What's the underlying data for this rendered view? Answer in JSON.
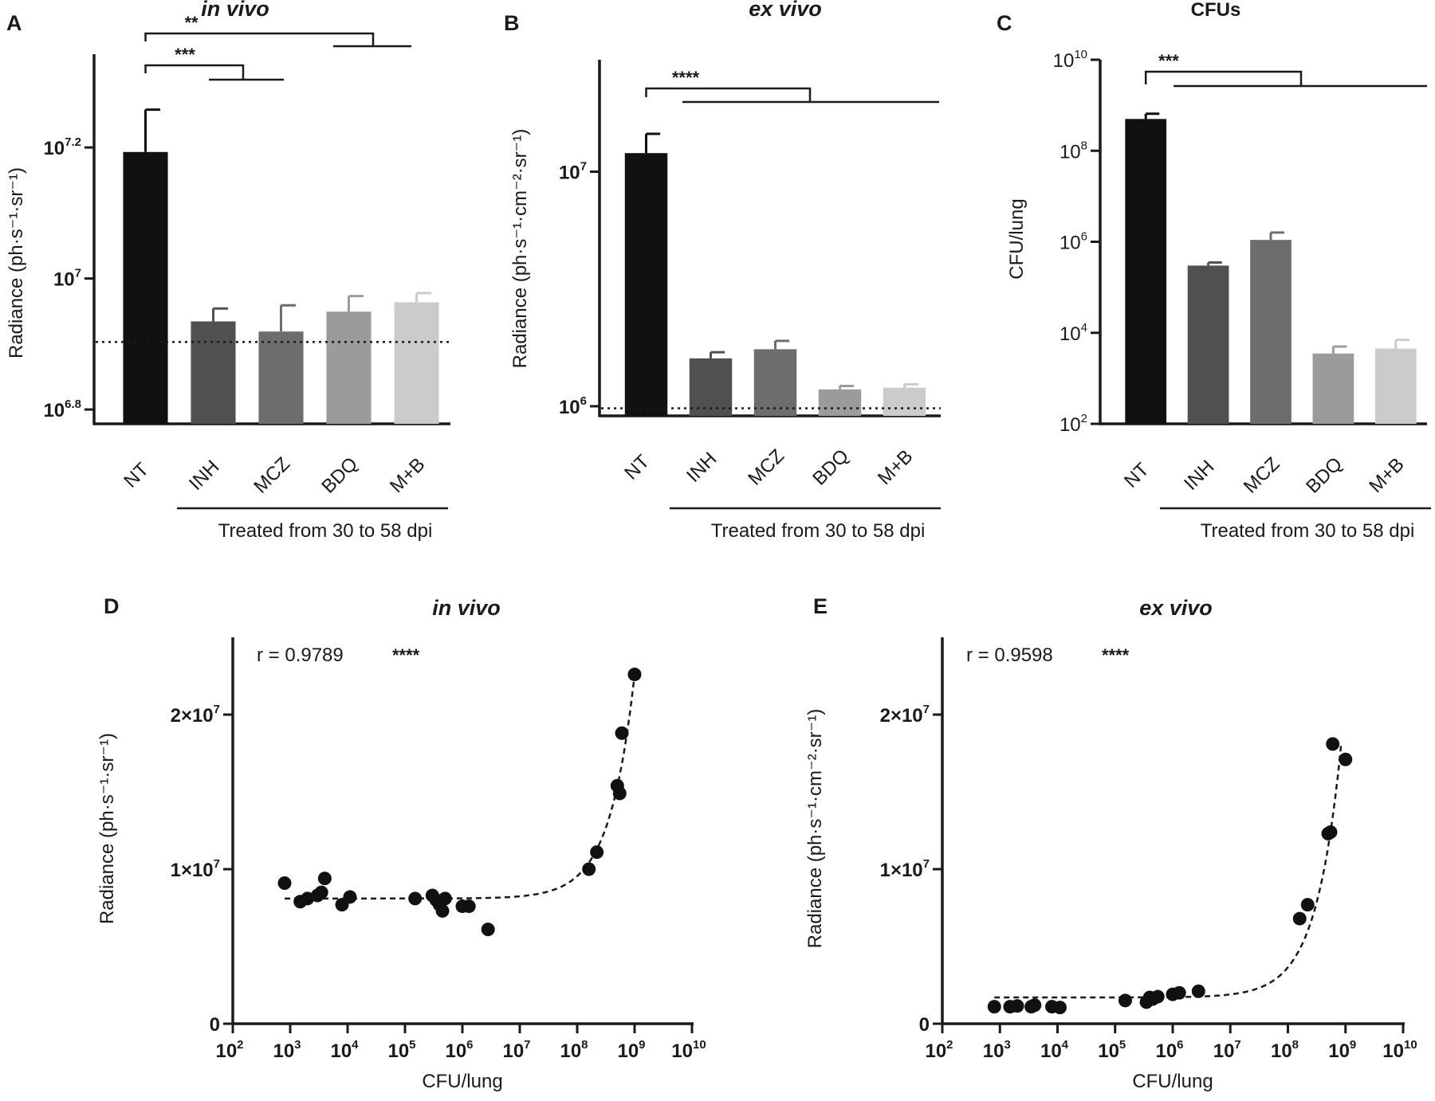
{
  "figure": {
    "panels": [
      {
        "letter": "A",
        "title": "in vivo"
      },
      {
        "letter": "B",
        "title": "ex vivo"
      },
      {
        "letter": "C",
        "title": "CFUs"
      },
      {
        "letter": "D",
        "title": "in vivo"
      },
      {
        "letter": "E",
        "title": "ex vivo"
      }
    ],
    "treated_label": "Treated from 30 to 58 dpi"
  },
  "chart_data": [
    {
      "panel": "A",
      "type": "bar",
      "title": "in vivo",
      "ylabel": "Radiance (ph·s⁻¹·sr⁻¹)",
      "yscale": "log",
      "ylim": [
        6000000,
        22000000
      ],
      "yticks": [
        "10^6.8",
        "10^7",
        "10^7.2"
      ],
      "categories": [
        "NT",
        "INH",
        "MCZ",
        "BDQ",
        "M+B"
      ],
      "values": [
        15600000,
        8600000,
        8300000,
        8900000,
        9200000
      ],
      "errors": [
        2500000,
        400000,
        800000,
        500000,
        300000
      ],
      "colors": [
        "#111111",
        "#505050",
        "#6d6d6d",
        "#9b9b9b",
        "#cbcbcb"
      ],
      "limit_of_detection": 8000000,
      "significance": [
        {
          "label": "***",
          "from": "NT",
          "to": [
            "INH",
            "MCZ"
          ]
        },
        {
          "label": "**",
          "from": "NT",
          "to": [
            "BDQ",
            "M+B"
          ]
        }
      ]
    },
    {
      "panel": "B",
      "type": "bar",
      "title": "ex vivo",
      "ylabel": "Radiance (ph·s⁻¹·cm⁻²·sr⁻¹)",
      "yscale": "log",
      "ylim": [
        910000,
        30000000
      ],
      "yticks": [
        "10^6",
        "10^7"
      ],
      "categories": [
        "NT",
        "INH",
        "MCZ",
        "BDQ",
        "M+B"
      ],
      "values": [
        12000000,
        1600000,
        1750000,
        1180000,
        1200000
      ],
      "errors": [
        2500000,
        100000,
        150000,
        40000,
        40000
      ],
      "colors": [
        "#111111",
        "#505050",
        "#6d6d6d",
        "#9b9b9b",
        "#cbcbcb"
      ],
      "limit_of_detection": 980000,
      "significance": [
        {
          "label": "****",
          "from": "NT",
          "to": [
            "INH",
            "MCZ",
            "BDQ",
            "M+B"
          ]
        }
      ]
    },
    {
      "panel": "C",
      "type": "bar",
      "title": "CFUs",
      "ylabel": "CFU/lung",
      "yscale": "log",
      "ylim": [
        100,
        10000000000
      ],
      "yticks": [
        "10^2",
        "10^4",
        "10^6",
        "10^8",
        "10^10"
      ],
      "categories": [
        "NT",
        "INH",
        "MCZ",
        "BDQ",
        "M+B"
      ],
      "values": [
        500000000,
        300000,
        1100000,
        3500,
        4500
      ],
      "errors": [
        150000000,
        50000,
        500000,
        1500,
        2500
      ],
      "colors": [
        "#111111",
        "#505050",
        "#6d6d6d",
        "#9b9b9b",
        "#cbcbcb"
      ],
      "significance": [
        {
          "label": "***",
          "from": "NT",
          "to": [
            "INH",
            "MCZ",
            "BDQ",
            "M+B"
          ]
        }
      ]
    },
    {
      "panel": "D",
      "type": "scatter",
      "title": "in vivo",
      "xlabel": "CFU/lung",
      "ylabel": "Radiance (ph·s⁻¹·sr⁻¹)",
      "xscale": "log",
      "xlim": [
        100,
        10000000000
      ],
      "ylim": [
        0,
        25000000
      ],
      "yticks": [
        "0",
        "1×10^7",
        "2×10^7"
      ],
      "annotation": "r =  0.9789",
      "significance": "****",
      "points": [
        [
          800,
          9100000
        ],
        [
          1500,
          7900000
        ],
        [
          2000,
          8100000
        ],
        [
          3000,
          8300000
        ],
        [
          3500,
          8500000
        ],
        [
          4000,
          9400000
        ],
        [
          8000,
          7700000
        ],
        [
          11000,
          8200000
        ],
        [
          150000,
          8100000
        ],
        [
          300000,
          8300000
        ],
        [
          350000,
          8000000
        ],
        [
          400000,
          7700000
        ],
        [
          450000,
          7300000
        ],
        [
          500000,
          8100000
        ],
        [
          1000000,
          7600000
        ],
        [
          1300000,
          7600000
        ],
        [
          2800000,
          6100000
        ],
        [
          160000000,
          10000000
        ],
        [
          220000000,
          11100000
        ],
        [
          500000000,
          15400000
        ],
        [
          550000000,
          14900000
        ],
        [
          600000000,
          18800000
        ],
        [
          1000000000,
          22600000
        ]
      ],
      "fit": {
        "type": "dashed",
        "baseline": 8100000,
        "slope": 0.0145
      }
    },
    {
      "panel": "E",
      "type": "scatter",
      "title": "ex vivo",
      "xlabel": "CFU/lung",
      "ylabel": "Radiance (ph·s⁻¹·cm⁻²·sr⁻¹)",
      "xscale": "log",
      "xlim": [
        100,
        10000000000
      ],
      "ylim": [
        0,
        25000000
      ],
      "yticks": [
        "0",
        "1×10^7",
        "2×10^7"
      ],
      "annotation": "r =  0.9598",
      "significance": "****",
      "points": [
        [
          800,
          1100000
        ],
        [
          1500,
          1100000
        ],
        [
          2000,
          1150000
        ],
        [
          3500,
          1100000
        ],
        [
          4000,
          1200000
        ],
        [
          8000,
          1100000
        ],
        [
          11000,
          1050000
        ],
        [
          150000,
          1500000
        ],
        [
          350000,
          1400000
        ],
        [
          400000,
          1700000
        ],
        [
          450000,
          1600000
        ],
        [
          550000,
          1750000
        ],
        [
          1000000,
          1900000
        ],
        [
          1300000,
          2000000
        ],
        [
          2800000,
          2100000
        ],
        [
          160000000,
          6800000
        ],
        [
          220000000,
          7700000
        ],
        [
          500000000,
          12300000
        ],
        [
          550000000,
          12400000
        ],
        [
          600000000,
          18100000
        ],
        [
          1000000000,
          17100000
        ]
      ],
      "fit": {
        "type": "dashed",
        "baseline": 1700000,
        "slope": 0.0195
      }
    }
  ]
}
